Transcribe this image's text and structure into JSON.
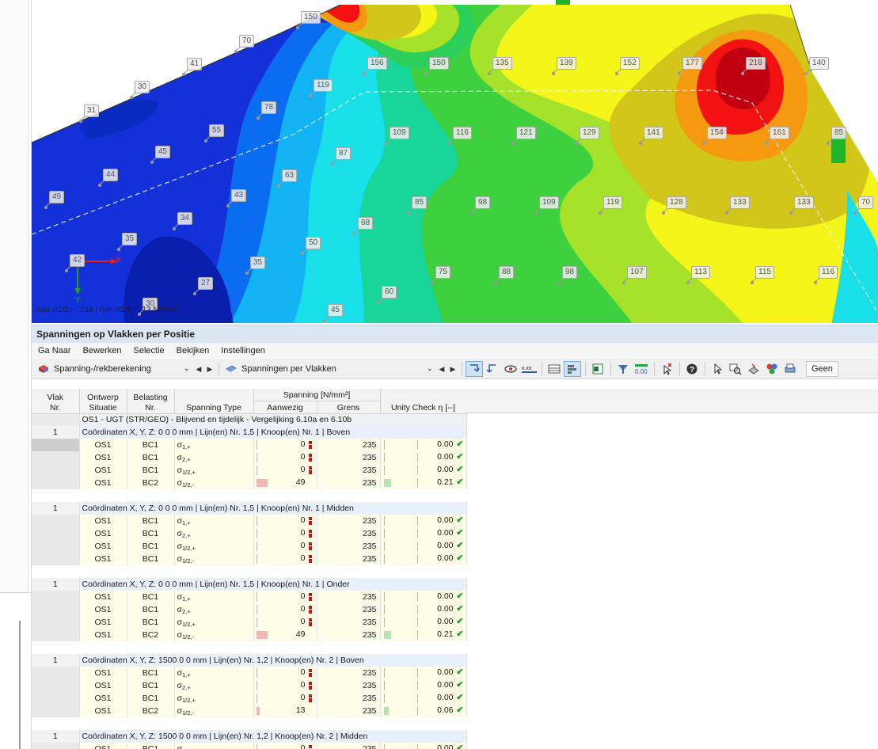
{
  "view": {
    "status_text": "max σ1/2,- : 218 | min σ1/2,- : 13 N/mm²",
    "axis_x": "X",
    "axis_y": "Y",
    "contour_labels": [
      {
        "v": "150"
      },
      {
        "v": "70"
      },
      {
        "v": "41"
      },
      {
        "v": "30"
      },
      {
        "v": "31"
      },
      {
        "v": "156"
      },
      {
        "v": "150"
      },
      {
        "v": "135"
      },
      {
        "v": "139"
      },
      {
        "v": "152"
      },
      {
        "v": "177"
      },
      {
        "v": "218"
      },
      {
        "v": "140"
      },
      {
        "v": "119"
      },
      {
        "v": "78"
      },
      {
        "v": "55"
      },
      {
        "v": "45"
      },
      {
        "v": "44"
      },
      {
        "v": "49"
      },
      {
        "v": "109"
      },
      {
        "v": "116"
      },
      {
        "v": "121"
      },
      {
        "v": "129"
      },
      {
        "v": "141"
      },
      {
        "v": "154"
      },
      {
        "v": "161"
      },
      {
        "v": "85"
      },
      {
        "v": "87"
      },
      {
        "v": "63"
      },
      {
        "v": "43"
      },
      {
        "v": "34"
      },
      {
        "v": "85"
      },
      {
        "v": "98"
      },
      {
        "v": "109"
      },
      {
        "v": "119"
      },
      {
        "v": "128"
      },
      {
        "v": "133"
      },
      {
        "v": "133"
      },
      {
        "v": "70"
      },
      {
        "v": "68"
      },
      {
        "v": "35"
      },
      {
        "v": "50"
      },
      {
        "v": "42"
      },
      {
        "v": "35"
      },
      {
        "v": "75"
      },
      {
        "v": "88"
      },
      {
        "v": "98"
      },
      {
        "v": "107"
      },
      {
        "v": "113"
      },
      {
        "v": "115"
      },
      {
        "v": "116"
      },
      {
        "v": "27"
      },
      {
        "v": "60"
      },
      {
        "v": "30"
      },
      {
        "v": "45"
      }
    ]
  },
  "panel": {
    "title": "Spanningen op Vlakken per Positie",
    "menu": [
      "Ga Naar",
      "Bewerken",
      "Selectie",
      "Bekijken",
      "Instellingen"
    ],
    "dropdown1": "Spanning-/rekberekening",
    "dropdown2": "Spanningen per Vlakken",
    "geen_label": "Geen"
  },
  "table": {
    "headers": {
      "vlak": "Vlak",
      "vlak_nr": "Nr.",
      "ontwerp": "Ontwerp",
      "situatie": "Situatie",
      "belasting": "Belasting",
      "belasting_nr": "Nr.",
      "spanning_type": "Spanning Type",
      "spanning_group": "Spanning [N/mm²]",
      "aanwezig": "Aanwezig",
      "grens": "Grens",
      "unity": "Unity Check η [--]"
    },
    "os_row": "OS1 - UGT (STR/GEO) - Blijvend en tijdelijk - Vergelijking 6.10a en 6.10b",
    "groups": [
      {
        "nr": "1",
        "coord": "Coördinaten X, Y, Z: 0 0 0 mm | Lijn(en) Nr. 1,5 | Knoop(en) Nr. 1 | Boven",
        "rows": [
          {
            "os": "OS1",
            "bc": "BC1",
            "type": "σ1,+",
            "aanwezig": "0",
            "grens": "235",
            "uc": "0.00",
            "frac": 0.0
          },
          {
            "os": "OS1",
            "bc": "BC1",
            "type": "σ2,+",
            "aanwezig": "0",
            "grens": "235",
            "uc": "0.00",
            "frac": 0.0
          },
          {
            "os": "OS1",
            "bc": "BC1",
            "type": "σ1/2,+",
            "aanwezig": "0",
            "grens": "235",
            "uc": "0.00",
            "frac": 0.0
          },
          {
            "os": "OS1",
            "bc": "BC2",
            "type": "σ1/2,-",
            "aanwezig": "49",
            "grens": "235",
            "uc": "0.21",
            "frac": 0.21
          }
        ]
      },
      {
        "nr": "1",
        "coord": "Coördinaten X, Y, Z: 0 0 0 mm | Lijn(en) Nr. 1,5 | Knoop(en) Nr. 1 | Midden",
        "rows": [
          {
            "os": "OS1",
            "bc": "BC1",
            "type": "σ1,+",
            "aanwezig": "0",
            "grens": "235",
            "uc": "0.00",
            "frac": 0.0
          },
          {
            "os": "OS1",
            "bc": "BC1",
            "type": "σ2,+",
            "aanwezig": "0",
            "grens": "235",
            "uc": "0.00",
            "frac": 0.0
          },
          {
            "os": "OS1",
            "bc": "BC1",
            "type": "σ1/2,+",
            "aanwezig": "0",
            "grens": "235",
            "uc": "0.00",
            "frac": 0.0
          },
          {
            "os": "OS1",
            "bc": "BC1",
            "type": "σ1/2,-",
            "aanwezig": "0",
            "grens": "235",
            "uc": "0.00",
            "frac": 0.0
          }
        ]
      },
      {
        "nr": "1",
        "coord": "Coördinaten X, Y, Z: 0 0 0 mm | Lijn(en) Nr. 1,5 | Knoop(en) Nr. 1 | Onder",
        "rows": [
          {
            "os": "OS1",
            "bc": "BC1",
            "type": "σ1,+",
            "aanwezig": "0",
            "grens": "235",
            "uc": "0.00",
            "frac": 0.0
          },
          {
            "os": "OS1",
            "bc": "BC1",
            "type": "σ2,+",
            "aanwezig": "0",
            "grens": "235",
            "uc": "0.00",
            "frac": 0.0
          },
          {
            "os": "OS1",
            "bc": "BC1",
            "type": "σ1/2,+",
            "aanwezig": "0",
            "grens": "235",
            "uc": "0.00",
            "frac": 0.0
          },
          {
            "os": "OS1",
            "bc": "BC2",
            "type": "σ1/2,-",
            "aanwezig": "49",
            "grens": "235",
            "uc": "0.21",
            "frac": 0.21
          }
        ]
      },
      {
        "nr": "1",
        "coord": "Coördinaten X, Y, Z: 1500 0 0 mm | Lijn(en) Nr. 1,2 | Knoop(en) Nr. 2 | Boven",
        "rows": [
          {
            "os": "OS1",
            "bc": "BC1",
            "type": "σ1,+",
            "aanwezig": "0",
            "grens": "235",
            "uc": "0.00",
            "frac": 0.0
          },
          {
            "os": "OS1",
            "bc": "BC1",
            "type": "σ2,+",
            "aanwezig": "0",
            "grens": "235",
            "uc": "0.00",
            "frac": 0.0
          },
          {
            "os": "OS1",
            "bc": "BC1",
            "type": "σ1/2,+",
            "aanwezig": "0",
            "grens": "235",
            "uc": "0.00",
            "frac": 0.0
          },
          {
            "os": "OS1",
            "bc": "BC2",
            "type": "σ1/2,-",
            "aanwezig": "13",
            "grens": "235",
            "uc": "0.06",
            "frac": 0.06
          }
        ]
      },
      {
        "nr": "1",
        "coord": "Coördinaten X, Y, Z: 1500 0 0 mm | Lijn(en) Nr. 1,2 | Knoop(en) Nr. 2 | Midden",
        "rows": [
          {
            "os": "OS1",
            "bc": "BC1",
            "type": "σ1,+",
            "aanwezig": "0",
            "grens": "235",
            "uc": "0.00",
            "frac": 0.0
          }
        ]
      }
    ]
  }
}
